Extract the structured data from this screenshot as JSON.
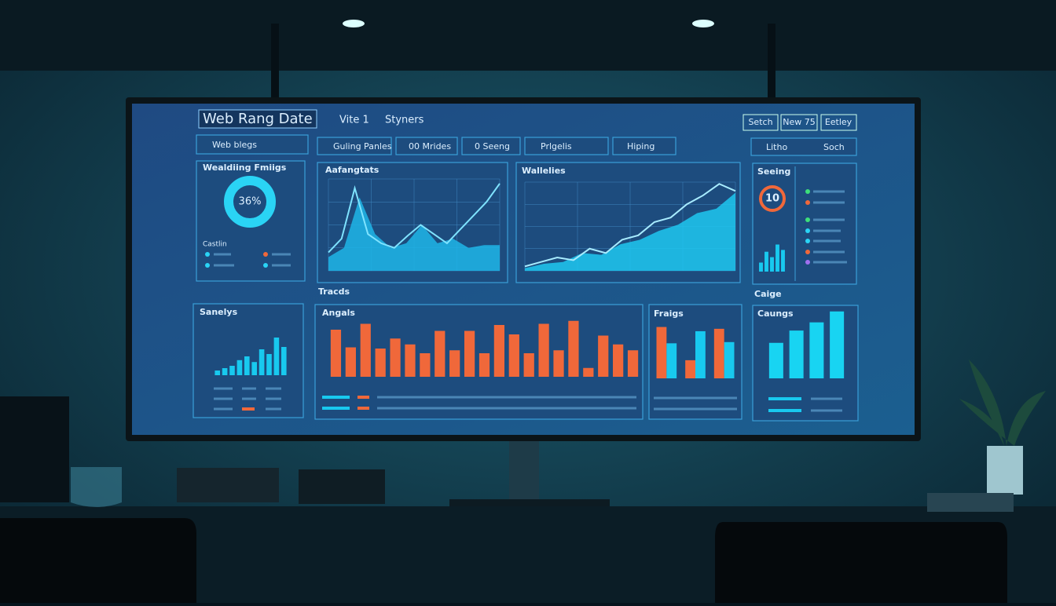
{
  "header": {
    "title": "Web Rang Date",
    "items": [
      "Vite 1",
      "Styners"
    ],
    "buttons": [
      "Setch",
      "New 75",
      "Eetley"
    ]
  },
  "tabs": [
    "Web blegs",
    "Guling Panles",
    "00 Mrides",
    "0 Seeng",
    "Prlgelis",
    "Hiping",
    "Litho",
    "Soch"
  ],
  "donut": {
    "title": "Wealdiing Fmiigs",
    "value": "36%",
    "legend_title": "Castlin",
    "color": "#2ad4f5"
  },
  "ring": {
    "title": "Seeing",
    "value": "10"
  },
  "sections": [
    "Tracds",
    "Caige"
  ],
  "charts": [
    {
      "type": "line",
      "title": "Aafangtats",
      "ylim": [
        0,
        100
      ],
      "series": [
        {
          "color": "#1fb6e8",
          "style": "area",
          "values": [
            15,
            25,
            80,
            40,
            25,
            30,
            50,
            30,
            35,
            25,
            28,
            28
          ]
        },
        {
          "color": "#7fe3ff",
          "style": "line",
          "values": [
            20,
            35,
            90,
            40,
            30,
            25,
            38,
            50,
            40,
            30,
            45,
            60,
            75,
            95
          ]
        }
      ]
    },
    {
      "type": "line",
      "title": "Wallelies",
      "ylim": [
        0,
        100
      ],
      "series": [
        {
          "color": "#1fc8f0",
          "style": "area",
          "values": [
            3,
            8,
            10,
            20,
            18,
            30,
            35,
            45,
            52,
            65,
            70,
            88
          ]
        },
        {
          "color": "#a8ecff",
          "style": "line",
          "values": [
            5,
            10,
            15,
            12,
            25,
            20,
            35,
            40,
            55,
            60,
            75,
            85,
            98,
            90
          ]
        }
      ]
    },
    {
      "type": "bar",
      "title": "Sanelys",
      "ylim": [
        0,
        100
      ],
      "series": [
        {
          "color": "#18c9ef",
          "values": [
            10,
            15,
            20,
            32,
            40,
            28,
            55,
            45,
            80,
            60
          ]
        }
      ]
    },
    {
      "type": "bar",
      "title": "Angals",
      "ylim": [
        0,
        100
      ],
      "series": [
        {
          "color": "#f0683a",
          "values": [
            80,
            50,
            90,
            48,
            65,
            55,
            40,
            78,
            45,
            78,
            40,
            88,
            72,
            40,
            90,
            45,
            95,
            15,
            70,
            55,
            45
          ]
        }
      ]
    },
    {
      "type": "bar",
      "title": "Fraigs",
      "ylim": [
        0,
        100
      ],
      "series": [
        {
          "color": "#f0683a",
          "values": [
            85,
            30,
            82
          ]
        },
        {
          "color": "#18c9ef",
          "values": [
            58,
            78,
            60
          ]
        }
      ]
    },
    {
      "type": "bar",
      "title": "Caungs",
      "ylim": [
        0,
        100
      ],
      "series": [
        {
          "color": "#18d4f2",
          "values": [
            52,
            70,
            82,
            98
          ]
        }
      ]
    },
    {
      "type": "bar",
      "ylim": [
        0,
        100
      ],
      "series": [
        {
          "color": "#18c9ef",
          "values": [
            25,
            55,
            40,
            75,
            60
          ]
        }
      ]
    }
  ]
}
